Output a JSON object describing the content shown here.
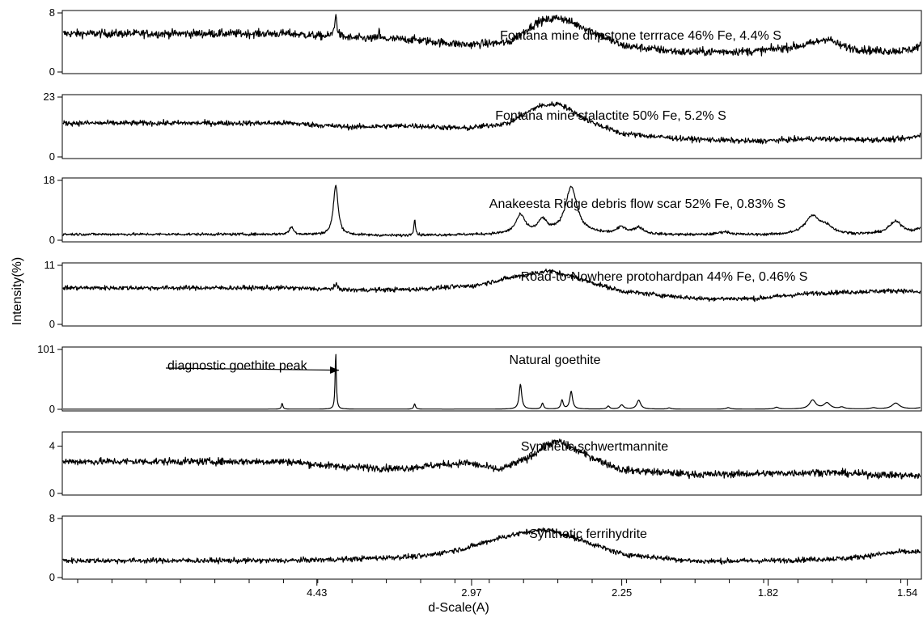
{
  "chart_data": {
    "type": "line",
    "xlabel": "d-Scale(A)",
    "ylabel": "Intensity(%)",
    "x_ticks": [
      {
        "value": 4.43,
        "label": "4.43"
      },
      {
        "value": 2.97,
        "label": "2.97"
      },
      {
        "value": 2.25,
        "label": "2.25"
      },
      {
        "value": 1.82,
        "label": "1.82"
      },
      {
        "value": 1.54,
        "label": "1.54"
      }
    ],
    "panels": [
      {
        "name": "Fontana mine dripstone terrrace 46% Fe, 4.4% S",
        "ylim": [
          0,
          8
        ],
        "ytick_labels": [
          "0",
          "8"
        ],
        "noise": 0.55,
        "baseline": [
          [
            4.85,
            5.2
          ],
          [
            4.0,
            4.6
          ],
          [
            3.4,
            4.4
          ],
          [
            3.0,
            3.7
          ],
          [
            2.75,
            4.0
          ],
          [
            2.6,
            6.8
          ],
          [
            2.5,
            7.4
          ],
          [
            2.38,
            5.8
          ],
          [
            2.25,
            3.6
          ],
          [
            2.05,
            2.7
          ],
          [
            1.85,
            2.8
          ],
          [
            1.72,
            3.6
          ],
          [
            1.6,
            2.8
          ],
          [
            1.45,
            2.6
          ]
        ],
        "peaks": [
          [
            4.18,
            2.8,
            0.02
          ],
          [
            3.7,
            1.6,
            0.005
          ],
          [
            1.69,
            1.1,
            0.02
          ],
          [
            1.51,
            1.2,
            0.015
          ]
        ]
      },
      {
        "name": "Fontana mine stalactite 50% Fe, 5.2% S",
        "ylim": [
          0,
          23
        ],
        "ytick_labels": [
          "0",
          "23"
        ],
        "noise": 1.0,
        "baseline": [
          [
            4.85,
            13.0
          ],
          [
            4.0,
            11.5
          ],
          [
            3.4,
            12.0
          ],
          [
            3.0,
            11.0
          ],
          [
            2.75,
            13.0
          ],
          [
            2.6,
            19.5
          ],
          [
            2.5,
            20.5
          ],
          [
            2.38,
            14.0
          ],
          [
            2.25,
            9.0
          ],
          [
            2.05,
            7.0
          ],
          [
            1.85,
            6.0
          ],
          [
            1.72,
            7.0
          ],
          [
            1.6,
            6.5
          ],
          [
            1.45,
            6.0
          ]
        ],
        "peaks": [
          [
            1.51,
            2.8,
            0.02
          ]
        ]
      },
      {
        "name": "Anakeesta Ridge debris flow scar 52% Fe, 0.83% S",
        "ylim": [
          0,
          18
        ],
        "ytick_labels": [
          "0",
          "18"
        ],
        "noise": 0.4,
        "baseline": [
          [
            4.85,
            1.8
          ],
          [
            4.2,
            1.6
          ],
          [
            3.5,
            1.4
          ],
          [
            2.75,
            1.8
          ],
          [
            2.5,
            2.0
          ],
          [
            2.2,
            1.6
          ],
          [
            1.85,
            1.5
          ],
          [
            1.45,
            1.6
          ]
        ],
        "peaks": [
          [
            4.82,
            2.2,
            0.04
          ],
          [
            4.18,
            15.0,
            0.035
          ],
          [
            3.38,
            5.0,
            0.008
          ],
          [
            2.69,
            5.5,
            0.03
          ],
          [
            2.58,
            3.8,
            0.025
          ],
          [
            2.45,
            14.0,
            0.03
          ],
          [
            2.25,
            2.0,
            0.02
          ],
          [
            2.19,
            2.0,
            0.02
          ],
          [
            1.93,
            0.9,
            0.02
          ],
          [
            1.72,
            5.5,
            0.02
          ],
          [
            1.69,
            1.8,
            0.015
          ],
          [
            1.56,
            3.8,
            0.015
          ],
          [
            1.51,
            2.6,
            0.012
          ]
        ]
      },
      {
        "name": "Road-to-Nowhere protohardpan 44% Fe, 0.46% S",
        "ylim": [
          0,
          11
        ],
        "ytick_labels": [
          "0",
          "11"
        ],
        "noise": 0.42,
        "baseline": [
          [
            4.85,
            6.8
          ],
          [
            4.0,
            6.4
          ],
          [
            3.4,
            6.5
          ],
          [
            2.95,
            7.2
          ],
          [
            2.7,
            9.0
          ],
          [
            2.55,
            10.0
          ],
          [
            2.45,
            9.0
          ],
          [
            2.25,
            6.2
          ],
          [
            2.0,
            4.8
          ],
          [
            1.85,
            4.8
          ],
          [
            1.72,
            5.8
          ],
          [
            1.55,
            6.3
          ],
          [
            1.45,
            5.2
          ]
        ],
        "peaks": [
          [
            4.18,
            0.8,
            0.03
          ]
        ]
      },
      {
        "name": "Natural goethite",
        "ylim": [
          0,
          101
        ],
        "ytick_labels": [
          "0",
          "101"
        ],
        "noise": 0.0,
        "baseline": [
          [
            4.85,
            0.3
          ],
          [
            1.45,
            0.3
          ]
        ],
        "peaks": [
          [
            4.98,
            10.0,
            0.015
          ],
          [
            4.18,
            96.0,
            0.009
          ],
          [
            3.38,
            9.0,
            0.008
          ],
          [
            2.69,
            42.0,
            0.008
          ],
          [
            2.58,
            10.0,
            0.006
          ],
          [
            2.49,
            15.0,
            0.006
          ],
          [
            2.45,
            30.0,
            0.007
          ],
          [
            2.3,
            5.0,
            0.006
          ],
          [
            2.25,
            7.0,
            0.008
          ],
          [
            2.19,
            15.0,
            0.008
          ],
          [
            2.09,
            2.0,
            0.006
          ],
          [
            1.92,
            2.5,
            0.006
          ],
          [
            1.8,
            3.0,
            0.006
          ],
          [
            1.72,
            15.0,
            0.008
          ],
          [
            1.69,
            10.0,
            0.008
          ],
          [
            1.66,
            3.0,
            0.006
          ],
          [
            1.6,
            2.0,
            0.006
          ],
          [
            1.56,
            10.0,
            0.008
          ],
          [
            1.51,
            5.0,
            0.008
          ],
          [
            1.47,
            3.0,
            0.006
          ]
        ]
      },
      {
        "name": "Synthetic schwertmannite",
        "ylim": [
          0,
          5
        ],
        "ytick_labels": [
          "0",
          "4"
        ],
        "noise": 0.3,
        "baseline": [
          [
            4.85,
            2.7
          ],
          [
            4.2,
            2.3
          ],
          [
            3.5,
            2.1
          ],
          [
            3.0,
            2.6
          ],
          [
            2.8,
            2.0
          ],
          [
            2.65,
            3.0
          ],
          [
            2.55,
            4.2
          ],
          [
            2.5,
            4.4
          ],
          [
            2.4,
            3.4
          ],
          [
            2.25,
            2.0
          ],
          [
            2.0,
            1.6
          ],
          [
            1.8,
            1.7
          ],
          [
            1.7,
            1.8
          ],
          [
            1.6,
            1.6
          ],
          [
            1.45,
            1.4
          ]
        ],
        "peaks": []
      },
      {
        "name": "Synthetic ferrihydrite",
        "ylim": [
          0,
          8
        ],
        "ytick_labels": [
          "0",
          "8"
        ],
        "noise": 0.35,
        "baseline": [
          [
            4.85,
            2.3
          ],
          [
            4.0,
            2.5
          ],
          [
            3.3,
            2.9
          ],
          [
            3.0,
            4.0
          ],
          [
            2.8,
            5.4
          ],
          [
            2.65,
            6.2
          ],
          [
            2.55,
            6.5
          ],
          [
            2.4,
            5.0
          ],
          [
            2.25,
            3.2
          ],
          [
            2.0,
            2.2
          ],
          [
            1.8,
            2.3
          ],
          [
            1.65,
            2.6
          ],
          [
            1.55,
            3.5
          ],
          [
            1.5,
            3.4
          ],
          [
            1.45,
            2.6
          ]
        ],
        "peaks": []
      }
    ],
    "annotations": [
      {
        "panel": 4,
        "text": "diagnostic goethite peak",
        "arrow_to_d": 4.18,
        "arrow_to_y": 66
      }
    ]
  }
}
